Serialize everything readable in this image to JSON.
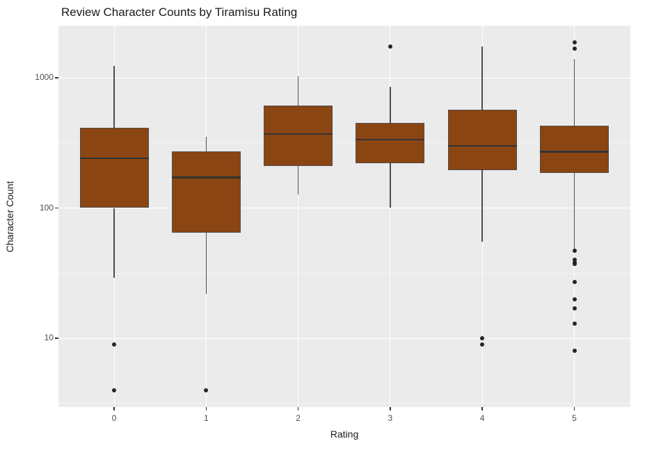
{
  "chart_data": {
    "type": "boxplot",
    "title": "Review Character Counts by Tiramisu Rating",
    "xlabel": "Rating",
    "ylabel": "Character Count",
    "y_scale": "log10",
    "y_ticks": [
      10,
      100,
      1000
    ],
    "y_minor_ticks": [
      3.162,
      31.62,
      316.2
    ],
    "ylim": [
      3,
      2500
    ],
    "grid": {
      "major": "on",
      "minor": "on"
    },
    "legend": "none",
    "categories": [
      "0",
      "1",
      "2",
      "3",
      "4",
      "5"
    ],
    "boxes": [
      {
        "rating": "0",
        "whisker_low": 29,
        "q1": 100,
        "median": 240,
        "q3": 415,
        "whisker_high": 1230,
        "outliers": [
          9,
          4
        ]
      },
      {
        "rating": "1",
        "whisker_low": 22,
        "q1": 65,
        "median": 172,
        "q3": 272,
        "whisker_high": 350,
        "outliers": [
          4
        ]
      },
      {
        "rating": "2",
        "whisker_low": 127,
        "q1": 210,
        "median": 370,
        "q3": 610,
        "whisker_high": 1030,
        "outliers": []
      },
      {
        "rating": "3",
        "whisker_low": 100,
        "q1": 220,
        "median": 335,
        "q3": 450,
        "whisker_high": 850,
        "outliers": [
          1730
        ]
      },
      {
        "rating": "4",
        "whisker_low": 55,
        "q1": 195,
        "median": 300,
        "q3": 565,
        "whisker_high": 1745,
        "outliers": [
          10,
          9
        ]
      },
      {
        "rating": "5",
        "whisker_low": 48,
        "q1": 185,
        "median": 270,
        "q3": 430,
        "whisker_high": 1400,
        "outliers": [
          1870,
          1675,
          47,
          40,
          38,
          37,
          27,
          20,
          17,
          13,
          8
        ]
      }
    ],
    "colors": {
      "box_fill": "#8B4513",
      "box_border": "#4D4D4D",
      "median": "#333333",
      "whisker": "#4D4D4D",
      "outlier": "#252525",
      "panel_bg": "#EBEBEB",
      "grid_major": "#FFFFFF",
      "grid_minor": "#F4F4F4",
      "tick_text": "#4D4D4D",
      "title_text": "#1A1A1A"
    }
  }
}
